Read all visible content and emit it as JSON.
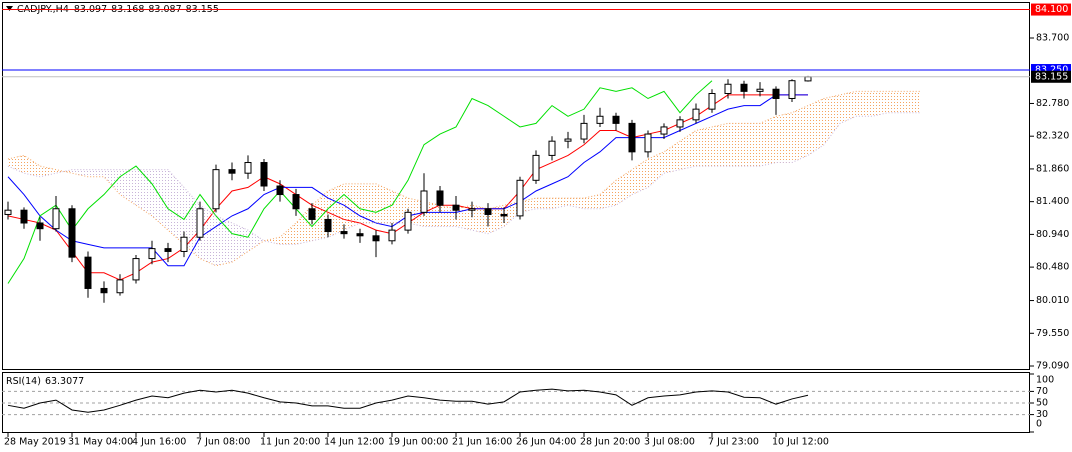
{
  "chart_data": [
    {
      "type": "candlestick",
      "title": "CADJPY.,H4",
      "header_values": [
        83.097,
        83.168,
        83.087,
        83.155
      ],
      "categories": [
        "28 May 2019",
        null,
        null,
        null,
        "31 May 04:00",
        null,
        null,
        null,
        "4 Jun 16:00",
        null,
        null,
        null,
        "7 Jun 08:00",
        null,
        null,
        null,
        "11 Jun 20:00",
        null,
        null,
        null,
        "14 Jun 12:00",
        null,
        null,
        null,
        "19 Jun 00:00",
        null,
        null,
        null,
        "21 Jun 16:00",
        null,
        null,
        null,
        "26 Jun 04:00",
        null,
        null,
        null,
        "28 Jun 20:00",
        null,
        null,
        null,
        "3 Jul 08:00",
        null,
        null,
        null,
        "7 Jul 23:00",
        null,
        null,
        null,
        "10 Jul 12:00",
        null,
        null,
        null,
        null,
        null,
        null,
        null,
        null,
        null
      ],
      "open": [
        81.22,
        81.28,
        81.1,
        81.02,
        81.3,
        80.62,
        80.18,
        80.12,
        80.3,
        80.6,
        80.74,
        80.7,
        80.9,
        81.3,
        81.85,
        81.8,
        81.95,
        81.62,
        81.5,
        81.3,
        81.15,
        80.98,
        80.95,
        80.92,
        80.85,
        81.0,
        81.25,
        81.55,
        81.35,
        81.28,
        81.3,
        81.22,
        81.2,
        81.7,
        82.05,
        82.25,
        82.28,
        82.5,
        82.6,
        82.5,
        82.1,
        82.35,
        82.45,
        82.55,
        82.7,
        82.92,
        83.05,
        82.95,
        82.98,
        82.85,
        83.097,
        null,
        null,
        null,
        null,
        null,
        null,
        null
      ],
      "high": [
        81.4,
        81.32,
        81.18,
        81.48,
        81.35,
        80.7,
        80.28,
        80.38,
        80.65,
        80.85,
        80.82,
        80.98,
        81.4,
        81.92,
        81.95,
        82.05,
        82.0,
        81.7,
        81.58,
        81.38,
        81.22,
        81.08,
        81.02,
        81.0,
        81.1,
        81.3,
        81.8,
        81.62,
        81.48,
        81.4,
        81.38,
        81.32,
        81.75,
        82.12,
        82.32,
        82.38,
        82.62,
        82.72,
        82.65,
        82.55,
        82.4,
        82.5,
        82.6,
        82.78,
        82.98,
        83.12,
        83.1,
        83.08,
        83.02,
        83.12,
        83.168,
        null,
        null,
        null,
        null,
        null,
        null,
        null
      ],
      "low": [
        81.15,
        81.02,
        80.85,
        80.98,
        80.55,
        80.05,
        79.98,
        80.08,
        80.25,
        80.52,
        80.55,
        80.62,
        80.85,
        81.25,
        81.7,
        81.72,
        81.55,
        81.4,
        81.2,
        81.08,
        80.9,
        80.88,
        80.82,
        80.62,
        80.8,
        80.95,
        81.2,
        81.25,
        81.15,
        81.18,
        81.05,
        81.1,
        81.15,
        81.65,
        81.98,
        82.15,
        82.22,
        82.45,
        82.4,
        81.98,
        82.02,
        82.28,
        82.38,
        82.5,
        82.65,
        82.85,
        82.85,
        82.88,
        82.62,
        82.8,
        83.087,
        null,
        null,
        null,
        null,
        null,
        null,
        null
      ],
      "close": [
        81.28,
        81.1,
        81.02,
        81.3,
        80.62,
        80.18,
        80.12,
        80.3,
        80.6,
        80.74,
        80.7,
        80.9,
        81.3,
        81.85,
        81.8,
        81.95,
        81.62,
        81.5,
        81.3,
        81.15,
        80.98,
        80.95,
        80.92,
        80.85,
        81.0,
        81.25,
        81.55,
        81.35,
        81.28,
        81.3,
        81.22,
        81.2,
        81.7,
        82.05,
        82.25,
        82.28,
        82.5,
        82.6,
        82.5,
        82.1,
        82.35,
        82.45,
        82.55,
        82.7,
        82.92,
        83.05,
        82.95,
        82.98,
        82.85,
        83.1,
        83.155,
        null,
        null,
        null,
        null,
        null,
        null,
        null
      ],
      "up_color": "#ffffff",
      "down_color": "#000000",
      "wick_color": "#000000",
      "series": [
        {
          "color": "#ff0000",
          "dotted": false,
          "values": [
            81.2,
            81.15,
            81.1,
            81.0,
            80.7,
            80.4,
            80.4,
            80.3,
            80.4,
            80.55,
            80.6,
            80.75,
            81.0,
            81.3,
            81.55,
            81.6,
            81.75,
            81.65,
            81.5,
            81.35,
            81.25,
            81.15,
            81.1,
            81.0,
            80.95,
            81.1,
            81.25,
            81.35,
            81.35,
            81.3,
            81.3,
            81.3,
            81.55,
            81.85,
            81.95,
            82.05,
            82.2,
            82.4,
            82.4,
            82.3,
            82.35,
            82.4,
            82.5,
            82.6,
            82.75,
            82.9,
            82.9,
            82.9,
            82.9,
            82.9,
            82.9,
            null,
            null,
            null,
            null,
            null,
            null,
            null
          ]
        },
        {
          "color": "#0000ff",
          "dotted": false,
          "values": [
            81.75,
            81.5,
            81.2,
            81.0,
            80.85,
            80.8,
            80.75,
            80.75,
            80.75,
            80.75,
            80.5,
            80.5,
            80.9,
            81.05,
            81.2,
            81.3,
            81.5,
            81.6,
            81.6,
            81.6,
            81.45,
            81.35,
            81.2,
            81.1,
            81.05,
            81.2,
            81.25,
            81.25,
            81.25,
            81.3,
            81.3,
            81.3,
            81.4,
            81.55,
            81.65,
            81.75,
            81.95,
            82.1,
            82.3,
            82.3,
            82.3,
            82.3,
            82.4,
            82.5,
            82.6,
            82.7,
            82.75,
            82.75,
            82.9,
            82.9,
            82.9,
            null,
            null,
            null,
            null,
            null,
            null,
            null
          ]
        },
        {
          "color": "#00e000",
          "dotted": false,
          "values": [
            80.25,
            80.6,
            81.2,
            81.35,
            81.0,
            81.3,
            81.5,
            81.75,
            81.9,
            81.65,
            81.3,
            81.15,
            81.5,
            81.2,
            80.95,
            80.9,
            81.3,
            81.55,
            81.3,
            81.05,
            81.3,
            81.5,
            81.3,
            81.25,
            81.35,
            81.7,
            82.2,
            82.35,
            82.45,
            82.85,
            82.75,
            82.6,
            82.45,
            82.5,
            82.75,
            82.6,
            82.7,
            83.0,
            82.95,
            83.0,
            82.85,
            82.95,
            82.65,
            82.9,
            83.1,
            null,
            null,
            null,
            null,
            null,
            null,
            null,
            null,
            null,
            null,
            null,
            null,
            null
          ]
        },
        {
          "color": "#f4a460",
          "dotted": true,
          "values": [
            82.0,
            82.05,
            81.9,
            81.85,
            81.8,
            81.75,
            81.75,
            81.5,
            81.35,
            81.2,
            81.0,
            80.8,
            80.6,
            80.5,
            80.55,
            80.7,
            80.85,
            80.9,
            81.1,
            81.35,
            81.55,
            81.65,
            81.65,
            81.65,
            81.55,
            81.45,
            81.4,
            81.35,
            81.3,
            81.35,
            81.3,
            81.35,
            81.4,
            81.45,
            81.45,
            81.45,
            81.45,
            81.5,
            81.7,
            81.85,
            82.0,
            82.1,
            82.25,
            82.4,
            82.45,
            82.5,
            82.5,
            82.5,
            82.6,
            82.65,
            82.75,
            82.85,
            82.9,
            82.95,
            82.95,
            82.95,
            82.95,
            82.95
          ]
        },
        {
          "color": "#c8b4d8",
          "dotted": true,
          "values": [
            81.9,
            81.8,
            81.75,
            81.8,
            81.85,
            81.85,
            81.85,
            81.85,
            81.85,
            81.85,
            81.85,
            81.6,
            81.35,
            81.2,
            81.1,
            81.0,
            80.85,
            80.8,
            80.8,
            80.85,
            80.9,
            81.0,
            81.1,
            81.1,
            81.1,
            81.1,
            81.05,
            81.05,
            81.05,
            81.0,
            80.95,
            81.05,
            81.25,
            81.3,
            81.3,
            81.35,
            81.3,
            81.3,
            81.35,
            81.5,
            81.6,
            81.8,
            81.85,
            81.9,
            81.9,
            81.9,
            81.9,
            81.9,
            81.95,
            81.95,
            82.05,
            82.2,
            82.5,
            82.6,
            82.6,
            82.65,
            82.65,
            82.65
          ]
        }
      ],
      "hlines": [
        {
          "value": 84.1,
          "label": "84.100",
          "color": "#ff0000",
          "box_color": "#ff0000",
          "text_color": "#ffffff"
        },
        {
          "value": 83.25,
          "label": "83.250",
          "color": "#0000ff",
          "box_color": "#0000ff",
          "text_color": "#ffffff"
        },
        {
          "value": 83.155,
          "label": "83.155",
          "color": "#c0c0c0",
          "box_color": "#000000",
          "text_color": "#ffffff"
        }
      ],
      "ylim": [
        79.034,
        84.206
      ],
      "yticks": [
        {
          "value": 83.7,
          "label": "83.700"
        },
        {
          "value": 82.78,
          "label": "82.780"
        },
        {
          "value": 82.32,
          "label": "82.320"
        },
        {
          "value": 81.86,
          "label": "81.860"
        },
        {
          "value": 81.4,
          "label": "81.400"
        },
        {
          "value": 80.94,
          "label": "80.940"
        },
        {
          "value": 80.48,
          "label": "80.480"
        },
        {
          "value": 80.01,
          "label": "80.010"
        },
        {
          "value": 79.55,
          "label": "79.550"
        },
        {
          "value": 79.09,
          "label": "79.090"
        }
      ],
      "grid": false
    },
    {
      "type": "line",
      "title": "RSI(14)",
      "last_value": 63.3077,
      "color": "#000000",
      "values": [
        46,
        41,
        50,
        55,
        38,
        34,
        38,
        46,
        55,
        62,
        59,
        67,
        72,
        69,
        72,
        67,
        59,
        52,
        50,
        45,
        45,
        41,
        41,
        50,
        55,
        62,
        59,
        55,
        53,
        53,
        48,
        52,
        69,
        72,
        74,
        71,
        72,
        69,
        64,
        46,
        59,
        62,
        64,
        69,
        71,
        69,
        60,
        59,
        48,
        57,
        63.3077,
        null,
        null,
        null,
        null,
        null,
        null,
        null
      ],
      "ylim": [
        0,
        100
      ],
      "yticks": [
        100,
        70,
        50,
        30,
        0
      ],
      "levels": [
        70,
        50,
        30
      ],
      "level_color": "#a0a0a0"
    }
  ]
}
